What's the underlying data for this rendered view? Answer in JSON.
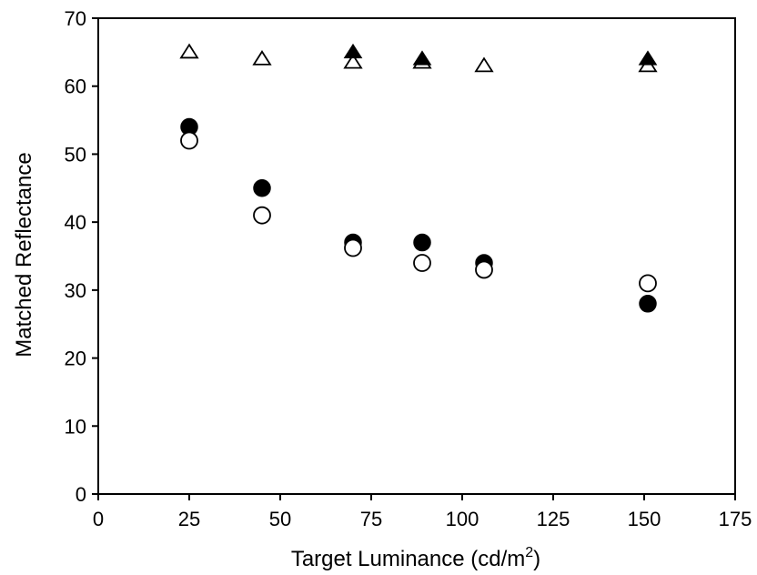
{
  "chart_data": {
    "type": "scatter",
    "title": "",
    "xlabel": "Target Luminance (cd/m",
    "xlabel_superscript": "2",
    "xlabel_suffix": ")",
    "ylabel": "Matched Reflectance",
    "xlim": [
      0,
      175
    ],
    "ylim": [
      0,
      70
    ],
    "xticks": [
      0,
      25,
      50,
      75,
      100,
      125,
      150,
      175
    ],
    "yticks": [
      0,
      10,
      20,
      30,
      40,
      50,
      60,
      70
    ],
    "grid": false,
    "legend": "none",
    "series": [
      {
        "marker": "filled-circle",
        "points": [
          [
            25,
            54
          ],
          [
            45,
            45
          ],
          [
            70,
            37
          ],
          [
            89,
            37
          ],
          [
            106,
            34
          ],
          [
            151,
            28
          ]
        ]
      },
      {
        "marker": "open-circle",
        "points": [
          [
            25,
            52
          ],
          [
            45,
            41
          ],
          [
            70,
            36.2
          ],
          [
            89,
            34
          ],
          [
            106,
            33
          ],
          [
            151,
            31
          ]
        ]
      },
      {
        "marker": "filled-triangle",
        "points": [
          [
            70,
            65
          ],
          [
            89,
            64
          ],
          [
            151,
            64
          ]
        ]
      },
      {
        "marker": "open-triangle",
        "points": [
          [
            25,
            65
          ],
          [
            45,
            64
          ],
          [
            70,
            63.5
          ],
          [
            89,
            63.5
          ],
          [
            106,
            63
          ],
          [
            151,
            63
          ]
        ]
      }
    ]
  }
}
